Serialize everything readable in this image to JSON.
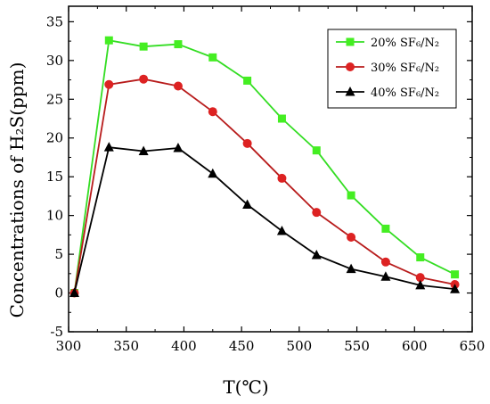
{
  "chart_data": {
    "type": "line",
    "xlabel": "T(℃)",
    "ylabel": "Concentrations of H₂S(ppm)",
    "xlim": [
      300,
      650
    ],
    "ylim": [
      -5,
      37
    ],
    "x_ticks": [
      300,
      350,
      400,
      450,
      500,
      550,
      600,
      650
    ],
    "y_ticks": [
      -5,
      0,
      5,
      10,
      15,
      20,
      25,
      30,
      35
    ],
    "grid": false,
    "legend_position": "top-right",
    "x": [
      305,
      335,
      365,
      395,
      425,
      455,
      485,
      515,
      545,
      575,
      605,
      635
    ],
    "series": [
      {
        "name": "20% SF₆/N₂",
        "marker": "square",
        "color": "#33dd22",
        "marker_color": "#44ee22",
        "values": [
          0,
          32.6,
          31.8,
          32.1,
          30.4,
          27.4,
          22.5,
          18.4,
          12.6,
          8.3,
          4.6,
          2.4
        ]
      },
      {
        "name": "30% SF₆/N₂",
        "marker": "circle",
        "color": "#b81c1c",
        "marker_color": "#dd2222",
        "values": [
          0,
          26.9,
          27.6,
          26.7,
          23.4,
          19.3,
          14.8,
          10.4,
          7.2,
          4.0,
          2.0,
          1.1
        ]
      },
      {
        "name": "40% SF₆/N₂",
        "marker": "triangle",
        "color": "#000000",
        "marker_color": "#000000",
        "values": [
          0,
          18.8,
          18.3,
          18.7,
          15.4,
          11.4,
          8.0,
          4.9,
          3.1,
          2.1,
          1.0,
          0.5
        ]
      }
    ]
  }
}
